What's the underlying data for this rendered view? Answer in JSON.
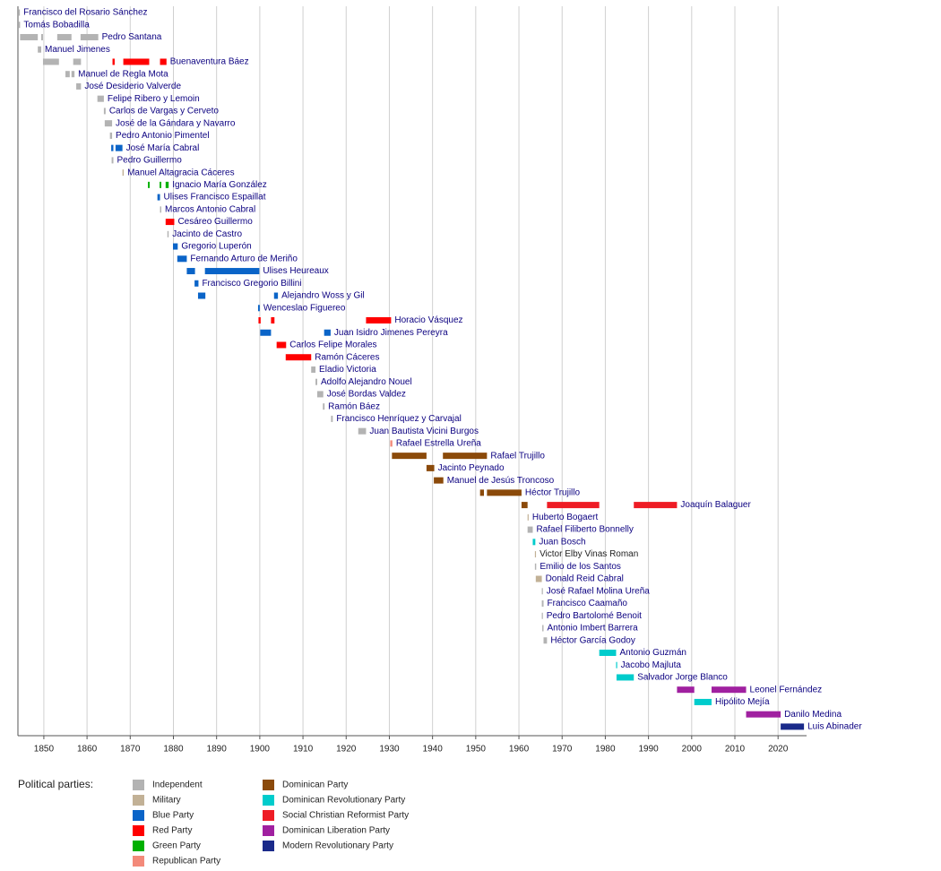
{
  "chart_data": {
    "type": "timeline",
    "xlim": [
      1844,
      2026.6
    ],
    "xticks": [
      1850,
      1860,
      1870,
      1880,
      1890,
      1900,
      1910,
      1920,
      1930,
      1940,
      1950,
      1960,
      1970,
      1980,
      1990,
      2000,
      2010,
      2020
    ],
    "grid": true,
    "legend_title": "Political parties:",
    "parties": [
      {
        "name": "Independent",
        "color": "#b3b3b3"
      },
      {
        "name": "Military",
        "color": "#c2b196"
      },
      {
        "name": "Blue Party",
        "color": "#0a64c8"
      },
      {
        "name": "Red Party",
        "color": "#ff0000"
      },
      {
        "name": "Green Party",
        "color": "#00b000"
      },
      {
        "name": "Republican Party",
        "color": "#f38a7a"
      },
      {
        "name": "Dominican Party",
        "color": "#8b4a0a"
      },
      {
        "name": "Dominican Revolutionary Party",
        "color": "#00cccc"
      },
      {
        "name": "Social Christian Reformist Party",
        "color": "#ee1c25"
      },
      {
        "name": "Dominican Liberation Party",
        "color": "#a020a0"
      },
      {
        "name": "Modern Revolutionary Party",
        "color": "#1a2a8a"
      }
    ],
    "rows": [
      {
        "name": "Francisco del Rosario Sánchez",
        "segments": [
          {
            "start": 1844.2,
            "end": 1844.4,
            "party": "Independent"
          }
        ]
      },
      {
        "name": "Tomás Bobadilla",
        "segments": [
          {
            "start": 1844.2,
            "end": 1844.5,
            "party": "Independent"
          }
        ]
      },
      {
        "name": "Pedro Santana",
        "segments": [
          {
            "start": 1844.5,
            "end": 1848.6,
            "party": "Independent"
          },
          {
            "start": 1849.4,
            "end": 1849.8,
            "party": "Independent"
          },
          {
            "start": 1853.1,
            "end": 1856.4,
            "party": "Independent"
          },
          {
            "start": 1858.5,
            "end": 1862.6,
            "party": "Independent"
          }
        ]
      },
      {
        "name": "Manuel Jimenes",
        "segments": [
          {
            "start": 1848.6,
            "end": 1849.4,
            "party": "Independent"
          }
        ]
      },
      {
        "name": "Buenaventura Báez",
        "segments": [
          {
            "start": 1849.8,
            "end": 1853.5,
            "party": "Independent"
          },
          {
            "start": 1856.8,
            "end": 1858.6,
            "party": "Independent"
          },
          {
            "start": 1865.9,
            "end": 1866.4,
            "party": "Red Party"
          },
          {
            "start": 1868.4,
            "end": 1874.4,
            "party": "Red Party"
          },
          {
            "start": 1876.9,
            "end": 1878.4,
            "party": "Red Party"
          }
        ]
      },
      {
        "name": "Manuel de Regla Mota",
        "segments": [
          {
            "start": 1855.0,
            "end": 1856.0,
            "party": "Independent"
          },
          {
            "start": 1856.4,
            "end": 1857.1,
            "party": "Independent"
          }
        ]
      },
      {
        "name": "José Desiderio Valverde",
        "segments": [
          {
            "start": 1857.5,
            "end": 1858.6,
            "party": "Independent"
          }
        ]
      },
      {
        "name": "Felipe Ribero y Lemoin",
        "segments": [
          {
            "start": 1862.4,
            "end": 1863.9,
            "party": "Independent"
          }
        ]
      },
      {
        "name": "Carlos de Vargas y Cerveto",
        "segments": [
          {
            "start": 1863.9,
            "end": 1864.3,
            "party": "Independent"
          }
        ]
      },
      {
        "name": "José de la Gándara y Navarro",
        "segments": [
          {
            "start": 1864.1,
            "end": 1865.8,
            "party": "Independent"
          }
        ]
      },
      {
        "name": "Pedro Antonio Pimentel",
        "segments": [
          {
            "start": 1865.3,
            "end": 1865.8,
            "party": "Independent"
          }
        ]
      },
      {
        "name": "José María Cabral",
        "segments": [
          {
            "start": 1865.6,
            "end": 1866.1,
            "party": "Blue Party"
          },
          {
            "start": 1866.6,
            "end": 1868.2,
            "party": "Blue Party"
          }
        ]
      },
      {
        "name": "Pedro Guillermo",
        "segments": [
          {
            "start": 1865.7,
            "end": 1866.1,
            "party": "Independent"
          }
        ]
      },
      {
        "name": "Manuel Altagracia Cáceres",
        "segments": [
          {
            "start": 1868.2,
            "end": 1868.5,
            "party": "Military"
          }
        ]
      },
      {
        "name": "Ignacio María González",
        "segments": [
          {
            "start": 1874.1,
            "end": 1874.5,
            "party": "Green Party"
          },
          {
            "start": 1876.8,
            "end": 1877.2,
            "party": "Green Party"
          },
          {
            "start": 1878.2,
            "end": 1878.9,
            "party": "Green Party"
          }
        ]
      },
      {
        "name": "Ulises Francisco Espaillat",
        "segments": [
          {
            "start": 1876.3,
            "end": 1876.9,
            "party": "Blue Party"
          }
        ]
      },
      {
        "name": "Marcos Antonio Cabral",
        "segments": [
          {
            "start": 1876.9,
            "end": 1877.2,
            "party": "Independent"
          }
        ]
      },
      {
        "name": "Cesáreo Guillermo",
        "segments": [
          {
            "start": 1878.2,
            "end": 1880.2,
            "party": "Red Party"
          }
        ]
      },
      {
        "name": "Jacinto de Castro",
        "segments": [
          {
            "start": 1878.6,
            "end": 1878.9,
            "party": "Independent"
          }
        ]
      },
      {
        "name": "Gregorio Luperón",
        "segments": [
          {
            "start": 1879.9,
            "end": 1881.0,
            "party": "Blue Party"
          }
        ]
      },
      {
        "name": "Fernando Arturo de Meriño",
        "segments": [
          {
            "start": 1880.9,
            "end": 1883.1,
            "party": "Blue Party"
          }
        ]
      },
      {
        "name": "Ulises Heureaux",
        "segments": [
          {
            "start": 1883.1,
            "end": 1885.0,
            "party": "Blue Party"
          },
          {
            "start": 1887.3,
            "end": 1899.9,
            "party": "Blue Party"
          }
        ]
      },
      {
        "name": "Francisco Gregorio Billini",
        "segments": [
          {
            "start": 1884.9,
            "end": 1885.8,
            "party": "Blue Party"
          }
        ]
      },
      {
        "name": "Alejandro Woss y Gil",
        "segments": [
          {
            "start": 1885.7,
            "end": 1887.4,
            "party": "Blue Party"
          },
          {
            "start": 1903.3,
            "end": 1904.2,
            "party": "Blue Party"
          }
        ]
      },
      {
        "name": "Wenceslao Figuereo",
        "segments": [
          {
            "start": 1899.6,
            "end": 1900.0,
            "party": "Blue Party"
          }
        ]
      },
      {
        "name": "Horacio Vásquez",
        "segments": [
          {
            "start": 1899.7,
            "end": 1900.2,
            "party": "Red Party"
          },
          {
            "start": 1902.6,
            "end": 1903.4,
            "party": "Red Party"
          },
          {
            "start": 1924.6,
            "end": 1930.4,
            "party": "Red Party"
          }
        ]
      },
      {
        "name": "Juan Isidro Jimenes Pereyra",
        "segments": [
          {
            "start": 1900.1,
            "end": 1902.6,
            "party": "Blue Party"
          },
          {
            "start": 1914.9,
            "end": 1916.4,
            "party": "Blue Party"
          }
        ]
      },
      {
        "name": "Carlos Felipe Morales",
        "segments": [
          {
            "start": 1903.9,
            "end": 1906.1,
            "party": "Red Party"
          }
        ]
      },
      {
        "name": "Ramón Cáceres",
        "segments": [
          {
            "start": 1906.0,
            "end": 1911.9,
            "party": "Red Party"
          }
        ]
      },
      {
        "name": "Eladio Victoria",
        "segments": [
          {
            "start": 1911.9,
            "end": 1912.9,
            "party": "Independent"
          }
        ]
      },
      {
        "name": "Adolfo Alejandro Nouel",
        "segments": [
          {
            "start": 1912.9,
            "end": 1913.3,
            "party": "Independent"
          }
        ]
      },
      {
        "name": "José Bordas Valdez",
        "segments": [
          {
            "start": 1913.3,
            "end": 1914.7,
            "party": "Independent"
          }
        ]
      },
      {
        "name": "Ramón Báez",
        "segments": [
          {
            "start": 1914.6,
            "end": 1915.0,
            "party": "Independent"
          }
        ]
      },
      {
        "name": "Francisco Henríquez y Carvajal",
        "segments": [
          {
            "start": 1916.5,
            "end": 1916.9,
            "party": "Independent"
          }
        ]
      },
      {
        "name": "Juan Bautista Vicini Burgos",
        "segments": [
          {
            "start": 1922.8,
            "end": 1924.6,
            "party": "Independent"
          }
        ]
      },
      {
        "name": "Rafael Estrella Ureña",
        "segments": [
          {
            "start": 1930.2,
            "end": 1930.7,
            "party": "Republican Party"
          }
        ]
      },
      {
        "name": "Rafael Trujillo",
        "segments": [
          {
            "start": 1930.6,
            "end": 1938.6,
            "party": "Dominican Party"
          },
          {
            "start": 1942.4,
            "end": 1952.6,
            "party": "Dominican Party"
          }
        ]
      },
      {
        "name": "Jacinto Peynado",
        "segments": [
          {
            "start": 1938.6,
            "end": 1940.4,
            "party": "Dominican Party"
          }
        ]
      },
      {
        "name": "Manuel de Jesús Troncoso",
        "segments": [
          {
            "start": 1940.3,
            "end": 1942.5,
            "party": "Dominican Party"
          }
        ]
      },
      {
        "name": "Héctor Trujillo",
        "segments": [
          {
            "start": 1951.0,
            "end": 1951.9,
            "party": "Dominican Party"
          },
          {
            "start": 1952.6,
            "end": 1960.6,
            "party": "Dominican Party"
          }
        ]
      },
      {
        "name": "Joaquín Balaguer",
        "segments": [
          {
            "start": 1960.6,
            "end": 1962.0,
            "party": "Dominican Party"
          },
          {
            "start": 1966.5,
            "end": 1978.6,
            "party": "Social Christian Reformist Party"
          },
          {
            "start": 1986.6,
            "end": 1996.6,
            "party": "Social Christian Reformist Party"
          }
        ]
      },
      {
        "name": "Huberto Bogaert",
        "segments": [
          {
            "start": 1962.0,
            "end": 1962.1,
            "party": "Military"
          }
        ]
      },
      {
        "name": "Rafael Filiberto Bonnelly",
        "segments": [
          {
            "start": 1962.0,
            "end": 1963.2,
            "party": "Independent"
          }
        ]
      },
      {
        "name": "Juan Bosch",
        "segments": [
          {
            "start": 1963.2,
            "end": 1963.8,
            "party": "Dominican Revolutionary Party"
          }
        ]
      },
      {
        "name": "Victor Elby Vinas Roman",
        "linked": false,
        "segments": [
          {
            "start": 1963.7,
            "end": 1963.8,
            "party": "Military"
          }
        ]
      },
      {
        "name": "Emilio de los Santos",
        "segments": [
          {
            "start": 1963.7,
            "end": 1964.0,
            "party": "Independent"
          }
        ]
      },
      {
        "name": "Donald Reid Cabral",
        "segments": [
          {
            "start": 1963.9,
            "end": 1965.3,
            "party": "Military"
          }
        ]
      },
      {
        "name": "José Rafael Molina Ureña",
        "segments": [
          {
            "start": 1965.3,
            "end": 1965.4,
            "party": "Independent"
          }
        ]
      },
      {
        "name": "Francisco Caamaño",
        "segments": [
          {
            "start": 1965.3,
            "end": 1965.7,
            "party": "Independent"
          }
        ]
      },
      {
        "name": "Pedro Bartolomé Benoit",
        "segments": [
          {
            "start": 1965.3,
            "end": 1965.4,
            "party": "Independent"
          }
        ]
      },
      {
        "name": "Antonio Imbert Barrera",
        "segments": [
          {
            "start": 1965.4,
            "end": 1965.7,
            "party": "Independent"
          }
        ]
      },
      {
        "name": "Héctor García Godoy",
        "segments": [
          {
            "start": 1965.7,
            "end": 1966.5,
            "party": "Independent"
          }
        ]
      },
      {
        "name": "Antonio Guzmán",
        "segments": [
          {
            "start": 1978.6,
            "end": 1982.5,
            "party": "Dominican Revolutionary Party"
          }
        ]
      },
      {
        "name": "Jacobo Majluta",
        "segments": [
          {
            "start": 1982.5,
            "end": 1982.6,
            "party": "Dominican Revolutionary Party"
          }
        ]
      },
      {
        "name": "Salvador Jorge Blanco",
        "segments": [
          {
            "start": 1982.6,
            "end": 1986.6,
            "party": "Dominican Revolutionary Party"
          }
        ]
      },
      {
        "name": "Leonel Fernández",
        "segments": [
          {
            "start": 1996.6,
            "end": 2000.6,
            "party": "Dominican Liberation Party"
          },
          {
            "start": 2004.6,
            "end": 2012.6,
            "party": "Dominican Liberation Party"
          }
        ]
      },
      {
        "name": "Hipólito Mejía",
        "segments": [
          {
            "start": 2000.6,
            "end": 2004.6,
            "party": "Dominican Revolutionary Party"
          }
        ]
      },
      {
        "name": "Danilo Medina",
        "segments": [
          {
            "start": 2012.6,
            "end": 2020.6,
            "party": "Dominican Liberation Party"
          }
        ]
      },
      {
        "name": "Luis Abinader",
        "segments": [
          {
            "start": 2020.6,
            "end": 2026.0,
            "party": "Modern Revolutionary Party"
          }
        ]
      }
    ]
  }
}
